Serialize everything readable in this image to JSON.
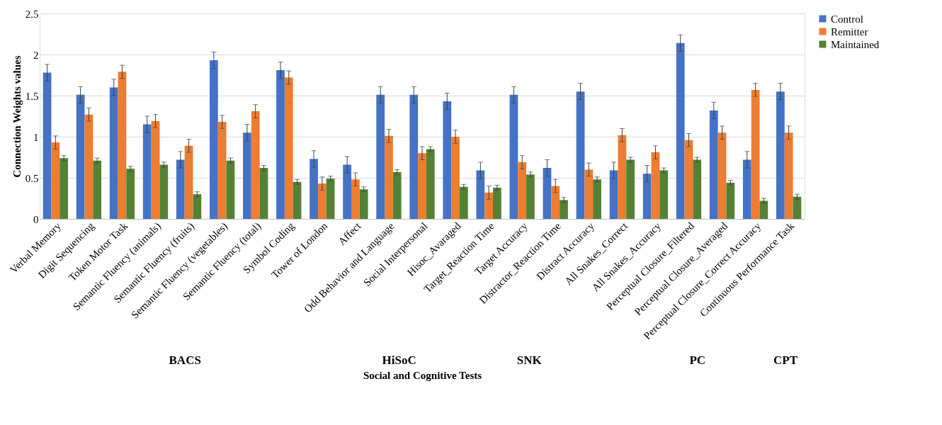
{
  "chart_data": {
    "type": "bar",
    "xlabel": "Social and Cognitive Tests",
    "ylabel": "Connection Weights values",
    "categories": [
      "Verbal Memory",
      "Digit Sequencing",
      "Token Motor Task",
      "Semantic Fluency (animals)",
      "Semantic Fluency (fruits)",
      "Semantic Fluency (vegetables)",
      "Semantic Fluency (total)",
      "Symbol Coding",
      "Tower of London",
      "Affect",
      "Odd Behavior and Language",
      "Social Interpersonal",
      "Hisoc_Avaraged",
      "Target_Reaction Time",
      "Target Accuracy",
      "Distractor_Reaction Time",
      "Distract Accuracy",
      "All Snakes_Correct",
      "All Snakes_Accuracy",
      "Perceptual Closure_Filtered",
      "Perceptual Closure_Averaged",
      "Perceptual Closure_Correct Accuracy",
      "Continuous Performance Task"
    ],
    "series": [
      {
        "name": "Control",
        "color": "#4472c4",
        "values": [
          1.78,
          1.51,
          1.6,
          1.15,
          0.72,
          1.93,
          1.05,
          1.81,
          0.73,
          0.66,
          1.51,
          1.51,
          1.43,
          0.59,
          1.51,
          0.62,
          1.55,
          0.59,
          0.55,
          2.14,
          1.32,
          0.72,
          1.55
        ],
        "errors": [
          0.1,
          0.1,
          0.1,
          0.1,
          0.1,
          0.1,
          0.1,
          0.1,
          0.1,
          0.1,
          0.1,
          0.1,
          0.1,
          0.1,
          0.1,
          0.1,
          0.1,
          0.1,
          0.1,
          0.1,
          0.1,
          0.1,
          0.1
        ]
      },
      {
        "name": "Remitter",
        "color": "#ed7d31",
        "values": [
          0.93,
          1.27,
          1.79,
          1.19,
          0.89,
          1.18,
          1.31,
          1.72,
          0.43,
          0.48,
          1.01,
          0.8,
          1.0,
          0.32,
          0.69,
          0.4,
          0.6,
          1.02,
          0.81,
          0.96,
          1.05,
          1.57,
          1.05
        ],
        "errors": [
          0.08,
          0.08,
          0.08,
          0.08,
          0.08,
          0.08,
          0.08,
          0.08,
          0.08,
          0.08,
          0.08,
          0.08,
          0.08,
          0.08,
          0.08,
          0.08,
          0.08,
          0.08,
          0.08,
          0.08,
          0.08,
          0.08,
          0.08
        ]
      },
      {
        "name": "Maintained",
        "color": "#548235",
        "values": [
          0.74,
          0.71,
          0.61,
          0.66,
          0.3,
          0.71,
          0.62,
          0.45,
          0.49,
          0.36,
          0.57,
          0.85,
          0.39,
          0.38,
          0.54,
          0.23,
          0.48,
          0.72,
          0.59,
          0.72,
          0.44,
          0.22,
          0.27
        ],
        "errors": [
          0.03,
          0.03,
          0.03,
          0.03,
          0.03,
          0.03,
          0.03,
          0.03,
          0.03,
          0.03,
          0.03,
          0.03,
          0.03,
          0.03,
          0.03,
          0.03,
          0.03,
          0.03,
          0.03,
          0.03,
          0.03,
          0.03,
          0.03
        ]
      }
    ],
    "ylim": [
      0,
      2.5
    ],
    "yticks": [
      0,
      0.5,
      1,
      1.5,
      2,
      2.5
    ],
    "grid": "y",
    "legend": "right",
    "annotations": [
      "BACS",
      "HiSoC",
      "SNK",
      "PC",
      "CPT"
    ]
  }
}
